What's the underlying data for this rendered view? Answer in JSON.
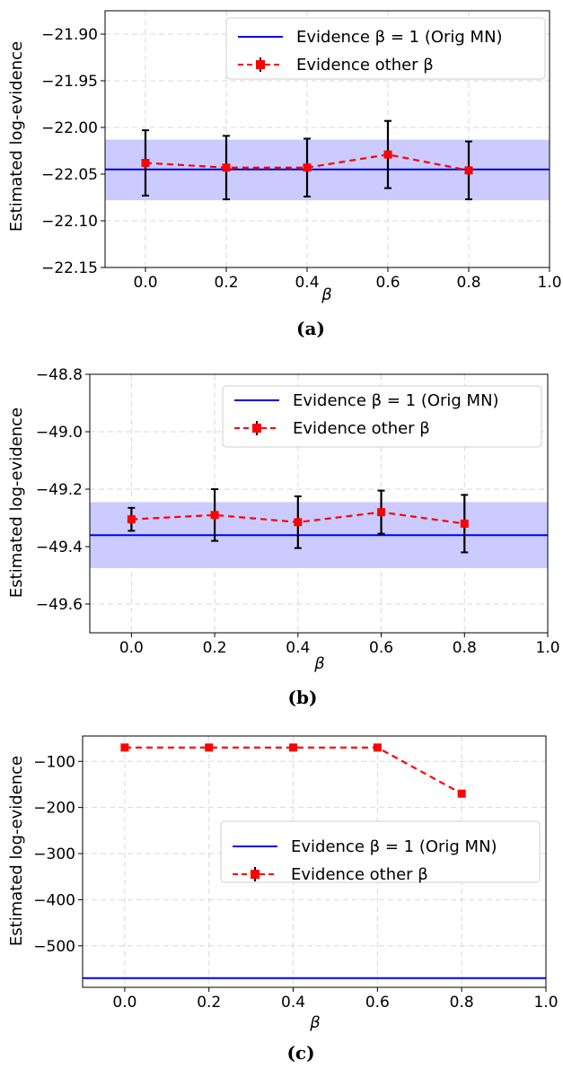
{
  "figure": {
    "panels": [
      {
        "caption": "(a)",
        "ylabel": "Estimated log-evidence",
        "xlabel": "β",
        "legend": {
          "ref_label": "Evidence β = 1 (Orig MN)",
          "other_label": "Evidence other β"
        }
      },
      {
        "caption": "(b)",
        "ylabel": "Estimated log-evidence",
        "xlabel": "β",
        "legend": {
          "ref_label": "Evidence β = 1 (Orig MN)",
          "other_label": "Evidence other β"
        }
      },
      {
        "caption": "(c)",
        "ylabel": "Estimated log-evidence",
        "xlabel": "β",
        "legend": {
          "ref_label": "Evidence β = 1 (Orig MN)",
          "other_label": "Evidence other β"
        }
      }
    ]
  },
  "colors": {
    "reference": "#0000ee",
    "band": "#c8c8ff",
    "other": "#ff0000",
    "errorbar": "#000000"
  },
  "chart_data": [
    {
      "type": "line",
      "title": "",
      "xlabel": "β",
      "ylabel": "Estimated log-evidence",
      "xlim": [
        -0.1,
        1.0
      ],
      "ylim": [
        -22.15,
        -21.875
      ],
      "xticks": [
        0.0,
        0.2,
        0.4,
        0.6,
        0.8,
        1.0
      ],
      "xtick_labels": [
        "0.0",
        "0.2",
        "0.4",
        "0.6",
        "0.8",
        "1.0"
      ],
      "yticks": [
        -21.9,
        -21.95,
        -22.0,
        -22.05,
        -22.1,
        -22.15
      ],
      "ytick_labels": [
        "−21.90",
        "−21.95",
        "−22.00",
        "−22.05",
        "−22.10",
        "−22.15"
      ],
      "grid": true,
      "legend_position": "top-right",
      "reference": {
        "name": "Evidence β = 1 (Orig MN)",
        "value": -22.045,
        "band": [
          -22.078,
          -22.013
        ]
      },
      "series": [
        {
          "name": "Evidence other β",
          "x": [
            0.0,
            0.2,
            0.4,
            0.6,
            0.8
          ],
          "y": [
            -22.038,
            -22.043,
            -22.043,
            -22.029,
            -22.046
          ],
          "yerr": [
            0.035,
            0.034,
            0.031,
            0.036,
            0.031
          ]
        }
      ]
    },
    {
      "type": "line",
      "title": "",
      "xlabel": "β",
      "ylabel": "Estimated log-evidence",
      "xlim": [
        -0.1,
        1.0
      ],
      "ylim": [
        -49.7,
        -48.8
      ],
      "xticks": [
        0.0,
        0.2,
        0.4,
        0.6,
        0.8,
        1.0
      ],
      "xtick_labels": [
        "0.0",
        "0.2",
        "0.4",
        "0.6",
        "0.8",
        "1.0"
      ],
      "yticks": [
        -48.8,
        -49.0,
        -49.2,
        -49.4,
        -49.6
      ],
      "ytick_labels": [
        "−48.8",
        "−49.0",
        "−49.2",
        "−49.4",
        "−49.6"
      ],
      "grid": true,
      "legend_position": "top-right",
      "reference": {
        "name": "Evidence β = 1 (Orig MN)",
        "value": -49.36,
        "band": [
          -49.475,
          -49.245
        ]
      },
      "series": [
        {
          "name": "Evidence other β",
          "x": [
            0.0,
            0.2,
            0.4,
            0.6,
            0.8
          ],
          "y": [
            -49.305,
            -49.29,
            -49.315,
            -49.28,
            -49.32
          ],
          "yerr": [
            0.04,
            0.09,
            0.09,
            0.075,
            0.1
          ]
        }
      ]
    },
    {
      "type": "line",
      "title": "",
      "xlabel": "β",
      "ylabel": "Estimated log-evidence",
      "xlim": [
        -0.1,
        1.0
      ],
      "ylim": [
        -590,
        -45
      ],
      "xticks": [
        0.0,
        0.2,
        0.4,
        0.6,
        0.8,
        1.0
      ],
      "xtick_labels": [
        "0.0",
        "0.2",
        "0.4",
        "0.6",
        "0.8",
        "1.0"
      ],
      "yticks": [
        -100,
        -200,
        -300,
        -400,
        -500
      ],
      "ytick_labels": [
        "−100",
        "−200",
        "−300",
        "−400",
        "−500"
      ],
      "grid": true,
      "legend_position": "center-right",
      "reference": {
        "name": "Evidence β = 1 (Orig MN)",
        "value": -570,
        "band": null
      },
      "series": [
        {
          "name": "Evidence other β",
          "x": [
            0.0,
            0.2,
            0.4,
            0.6,
            0.8
          ],
          "y": [
            -70,
            -70,
            -70,
            -70,
            -170
          ],
          "yerr": [
            0,
            0,
            0,
            0,
            0
          ]
        }
      ]
    }
  ]
}
